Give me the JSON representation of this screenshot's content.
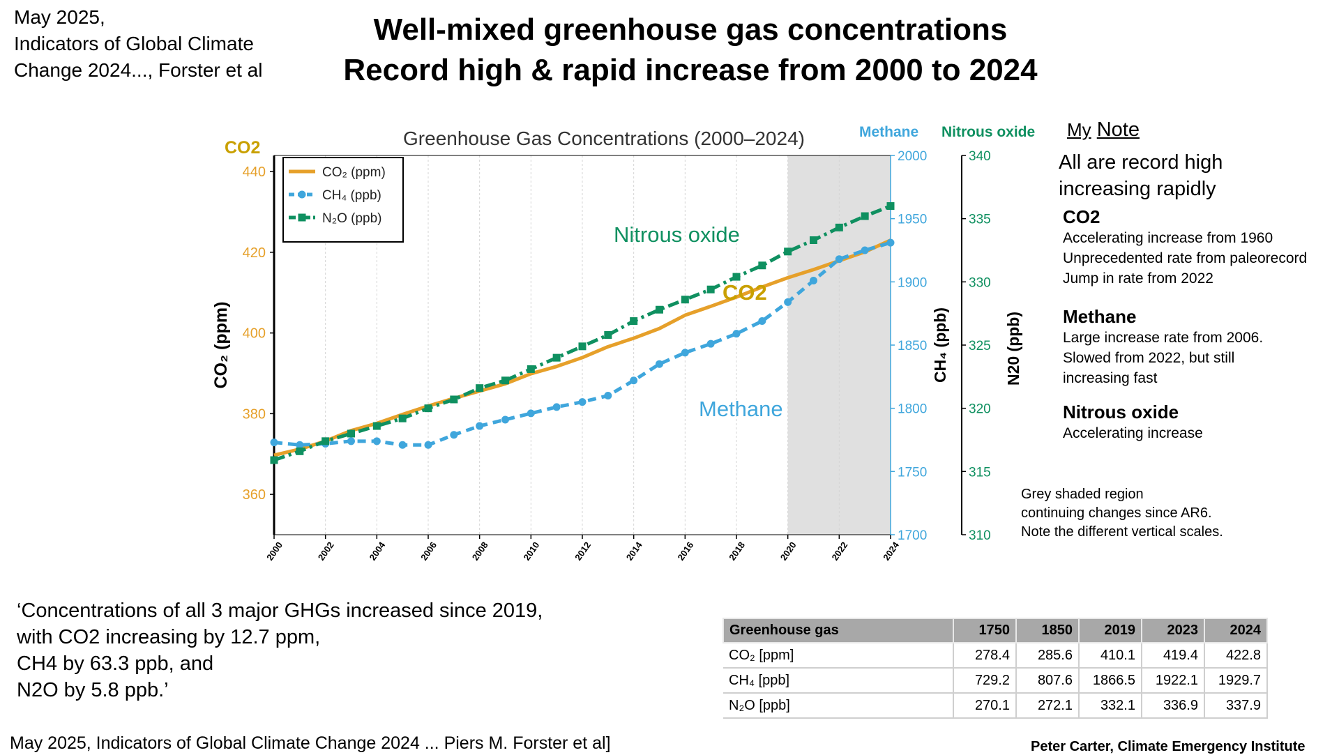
{
  "header": {
    "source_lines": [
      "May 2025,",
      "Indicators of Global Climate",
      "Change 2024..., Forster et al"
    ],
    "title_lines": [
      "Well-mixed greenhouse gas concentrations",
      "Record high & rapid increase from 2000 to 2024"
    ]
  },
  "colors": {
    "co2": "#e6a02a",
    "co2_label": "#c9a000",
    "ch4": "#3fa6dc",
    "n2o": "#0f9060",
    "shade": "#e0e0e0"
  },
  "chart_data": {
    "type": "line",
    "title": "Greenhouse Gas Concentrations (2000–2024)",
    "x": [
      2000,
      2001,
      2002,
      2003,
      2004,
      2005,
      2006,
      2007,
      2008,
      2009,
      2010,
      2011,
      2012,
      2013,
      2014,
      2015,
      2016,
      2017,
      2018,
      2019,
      2020,
      2021,
      2022,
      2023,
      2024
    ],
    "x_ticks": [
      "2000",
      "2002",
      "2004",
      "2006",
      "2008",
      "2010",
      "2012",
      "2014",
      "2016",
      "2018",
      "2020",
      "2022",
      "2024"
    ],
    "xlim": [
      2000,
      2024
    ],
    "shaded_region": [
      2020,
      2024
    ],
    "axes": {
      "co2": {
        "label": "CO₂ (ppm)",
        "top_label": "CO2",
        "ylim": [
          350,
          444
        ],
        "ticks": [
          "360",
          "380",
          "400",
          "420",
          "440"
        ]
      },
      "ch4": {
        "label": "CH₄ (ppb)",
        "top_label": "Methane",
        "ylim": [
          1700,
          2000
        ],
        "ticks": [
          "1700",
          "1750",
          "1800",
          "1850",
          "1900",
          "1950",
          "2000"
        ]
      },
      "n2o": {
        "label": "N20 (ppb)",
        "top_label": "Nitrous oxide",
        "ylim": [
          310,
          340
        ],
        "ticks": [
          "310",
          "315",
          "320",
          "325",
          "330",
          "335",
          "340"
        ]
      }
    },
    "series": [
      {
        "name": "CO₂ (ppm)",
        "axis": "co2",
        "values": [
          369.7,
          371.2,
          373.2,
          375.8,
          377.6,
          379.8,
          381.9,
          383.8,
          385.6,
          387.4,
          389.9,
          391.7,
          393.9,
          396.6,
          398.7,
          401.1,
          404.4,
          406.6,
          408.9,
          411.4,
          413.7,
          415.7,
          417.9,
          420.1,
          423.0
        ]
      },
      {
        "name": "CH₄ (ppb)",
        "axis": "ch4",
        "values": [
          1773,
          1771,
          1772,
          1774,
          1774,
          1771,
          1771,
          1779,
          1786,
          1791,
          1796,
          1801,
          1805,
          1810,
          1822,
          1835,
          1844,
          1851,
          1859,
          1869,
          1884,
          1901,
          1918,
          1925,
          1931
        ]
      },
      {
        "name": "N₂O (ppb)",
        "axis": "n2o",
        "values": [
          315.9,
          316.6,
          317.4,
          318.0,
          318.6,
          319.2,
          320.0,
          320.7,
          321.6,
          322.2,
          323.1,
          324.0,
          324.9,
          325.8,
          326.9,
          327.8,
          328.6,
          329.4,
          330.4,
          331.3,
          332.4,
          333.3,
          334.3,
          335.2,
          336.0
        ]
      }
    ],
    "legend_position": "top-left",
    "annotations": {
      "n2o": "Nitrous oxide",
      "co2": "CO2",
      "ch4": "Methane"
    }
  },
  "notes": {
    "heading_prefix": "My",
    "heading_word": "Note",
    "intro_lines": [
      "All are record high",
      "increasing rapidly"
    ],
    "sections": [
      {
        "title": "CO2",
        "lines": [
          "Accelerating  increase from 1960",
          "Unprecedented rate from paleorecord",
          "Jump in rate from 2022"
        ]
      },
      {
        "title": "Methane",
        "lines": [
          "Large increase rate from 2006.",
          "Slowed from 2022, but still",
          "increasing fast"
        ]
      },
      {
        "title": "Nitrous oxide",
        "lines": [
          "Accelerating increase"
        ]
      }
    ],
    "grey_note_lines": [
      "Grey shaded region",
      "continuing changes since AR6.",
      "Note the different vertical scales."
    ]
  },
  "quote_lines": [
    "‘Concentrations of all 3 major GHGs increased since 2019,",
    "with CO2 increasing by 12.7 ppm,",
    "CH4 by 63.3 ppb, and",
    "N2O by 5.8 ppb.’"
  ],
  "table": {
    "headers": [
      "Greenhouse gas",
      "1750",
      "1850",
      "2019",
      "2023",
      "2024"
    ],
    "rows": [
      [
        "CO₂ [ppm]",
        "278.4",
        "285.6",
        "410.1",
        "419.4",
        "422.8"
      ],
      [
        "CH₄ [ppb]",
        "729.2",
        "807.6",
        "1866.5",
        "1922.1",
        "1929.7"
      ],
      [
        "N₂O [ppb]",
        "270.1",
        "272.1",
        "332.1",
        "336.9",
        "337.9"
      ]
    ]
  },
  "footer": {
    "left": "May 2025, Indicators of Global Climate Change 2024 ... Piers M. Forster et al]",
    "right": "Peter Carter, Climate Emergency Institute"
  }
}
